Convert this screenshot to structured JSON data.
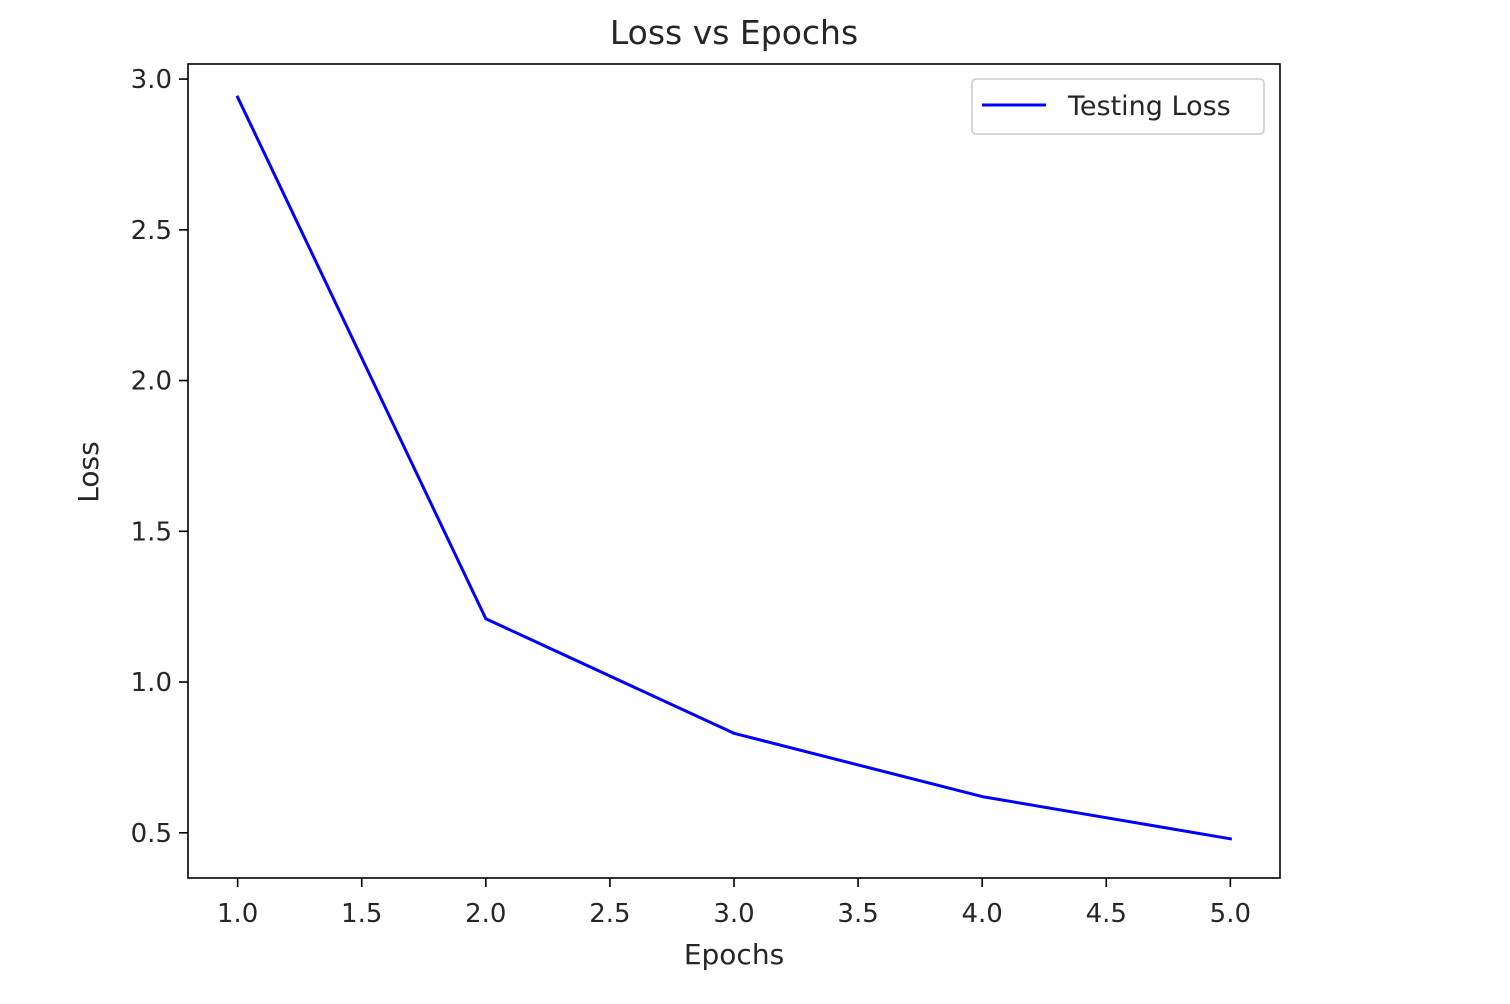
{
  "chart_data": {
    "type": "line",
    "title": "Loss vs Epochs",
    "xlabel": "Epochs",
    "ylabel": "Loss",
    "xlim": [
      0.8,
      5.2
    ],
    "ylim": [
      0.35,
      3.05
    ],
    "xticks": [
      1.0,
      1.5,
      2.0,
      2.5,
      3.0,
      3.5,
      4.0,
      4.5,
      5.0
    ],
    "xtick_labels": [
      "1.0",
      "1.5",
      "2.0",
      "2.5",
      "3.0",
      "3.5",
      "4.0",
      "4.5",
      "5.0"
    ],
    "yticks": [
      0.5,
      1.0,
      1.5,
      2.0,
      2.5,
      3.0
    ],
    "ytick_labels": [
      "0.5",
      "1.0",
      "1.5",
      "2.0",
      "2.5",
      "3.0"
    ],
    "grid": false,
    "legend_position": "top-right",
    "x": [
      1,
      2,
      3,
      4,
      5
    ],
    "series": [
      {
        "name": "Testing Loss",
        "color": "#0000ff",
        "values": [
          2.94,
          1.21,
          0.83,
          0.62,
          0.48
        ]
      }
    ]
  }
}
